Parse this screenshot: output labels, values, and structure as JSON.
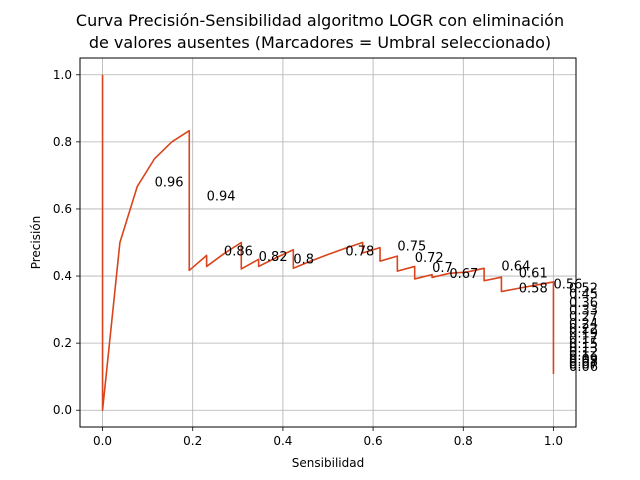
{
  "chart_data": {
    "type": "line",
    "title_line1": "Curva Precisión-Sensibilidad algoritmo LOGR con eliminación",
    "title_line2": "de valores ausentes (Marcadores = Umbral seleccionado)",
    "xlabel": "Sensibilidad",
    "ylabel": "Precisión",
    "xlim": [
      -0.05,
      1.05
    ],
    "ylim": [
      -0.05,
      1.05
    ],
    "grid": true,
    "line_color": "#d9441c",
    "x_ticks": [
      "0.0",
      "0.2",
      "0.4",
      "0.6",
      "0.8",
      "1.0"
    ],
    "y_ticks": [
      "0.0",
      "0.2",
      "0.4",
      "0.6",
      "0.8",
      "1.0"
    ],
    "x": [
      0.0,
      0.0,
      0.0385,
      0.0769,
      0.1154,
      0.1538,
      0.1923,
      0.1923,
      0.2308,
      0.2308,
      0.2692,
      0.3077,
      0.3077,
      0.3462,
      0.3462,
      0.3846,
      0.4231,
      0.4231,
      0.4615,
      0.5,
      0.5385,
      0.5769,
      0.5769,
      0.6154,
      0.6154,
      0.6538,
      0.6538,
      0.6923,
      0.6923,
      0.7308,
      0.7308,
      0.7692,
      0.8077,
      0.8462,
      0.8462,
      0.8846,
      0.8846,
      0.9231,
      0.9615,
      1.0,
      1.0
    ],
    "y": [
      1.0,
      0.0,
      0.5,
      0.6667,
      0.75,
      0.8,
      0.8333,
      0.4167,
      0.4615,
      0.4286,
      0.4667,
      0.5,
      0.4211,
      0.45,
      0.4286,
      0.4545,
      0.4783,
      0.4231,
      0.4444,
      0.4643,
      0.4828,
      0.5,
      0.4688,
      0.4848,
      0.4444,
      0.4595,
      0.4146,
      0.4286,
      0.3913,
      0.4043,
      0.3958,
      0.4082,
      0.4118,
      0.4231,
      0.386,
      0.3966,
      0.3538,
      0.3636,
      0.3731,
      0.3824,
      0.1083
    ],
    "annotations": [
      {
        "label": "0.96",
        "x": 0.1154,
        "y": 0.6667
      },
      {
        "label": "0.94",
        "x": 0.2308,
        "y": 0.625
      },
      {
        "label": "0.86",
        "x": 0.2692,
        "y": 0.4615
      },
      {
        "label": "0.82",
        "x": 0.3462,
        "y": 0.4444
      },
      {
        "label": "0.8",
        "x": 0.4231,
        "y": 0.4375
      },
      {
        "label": "0.78",
        "x": 0.5385,
        "y": 0.4615
      },
      {
        "label": "0.75",
        "x": 0.6538,
        "y": 0.4762
      },
      {
        "label": "0.72",
        "x": 0.6923,
        "y": 0.4412
      },
      {
        "label": "0.7",
        "x": 0.7308,
        "y": 0.4118
      },
      {
        "label": "0.67",
        "x": 0.7692,
        "y": 0.3947
      },
      {
        "label": "0.64",
        "x": 0.8846,
        "y": 0.4167
      },
      {
        "label": "0.61",
        "x": 0.9231,
        "y": 0.3953
      },
      {
        "label": "0.58",
        "x": 0.9231,
        "y": 0.3509
      },
      {
        "label": "0.56",
        "x": 1.0,
        "y": 0.3636
      },
      {
        "label": "0.52",
        "x": 1.0346,
        "y": 0.3509
      },
      {
        "label": "0.45",
        "x": 1.0346,
        "y": 0.3333
      },
      {
        "label": "0.36",
        "x": 1.0346,
        "y": 0.3077
      },
      {
        "label": "0.33",
        "x": 1.0346,
        "y": 0.2857
      },
      {
        "label": "0.27",
        "x": 1.0346,
        "y": 0.2667
      },
      {
        "label": "0.24",
        "x": 1.0346,
        "y": 0.2456
      },
      {
        "label": "0.22",
        "x": 1.0346,
        "y": 0.2308
      },
      {
        "label": "0.19",
        "x": 1.0346,
        "y": 0.2162
      },
      {
        "label": "0.17",
        "x": 1.0346,
        "y": 0.2
      },
      {
        "label": "0.15",
        "x": 1.0346,
        "y": 0.1857
      },
      {
        "label": "0.13",
        "x": 1.0346,
        "y": 0.1714
      },
      {
        "label": "0.12",
        "x": 1.0346,
        "y": 0.16
      },
      {
        "label": "0.1",
        "x": 1.0346,
        "y": 0.1494
      },
      {
        "label": "0.09",
        "x": 1.0346,
        "y": 0.1398
      },
      {
        "label": "0.08",
        "x": 1.0346,
        "y": 0.1316
      },
      {
        "label": "0.07",
        "x": 1.0346,
        "y": 0.1238
      },
      {
        "label": "0.06",
        "x": 1.0346,
        "y": 0.1171
      }
    ]
  }
}
